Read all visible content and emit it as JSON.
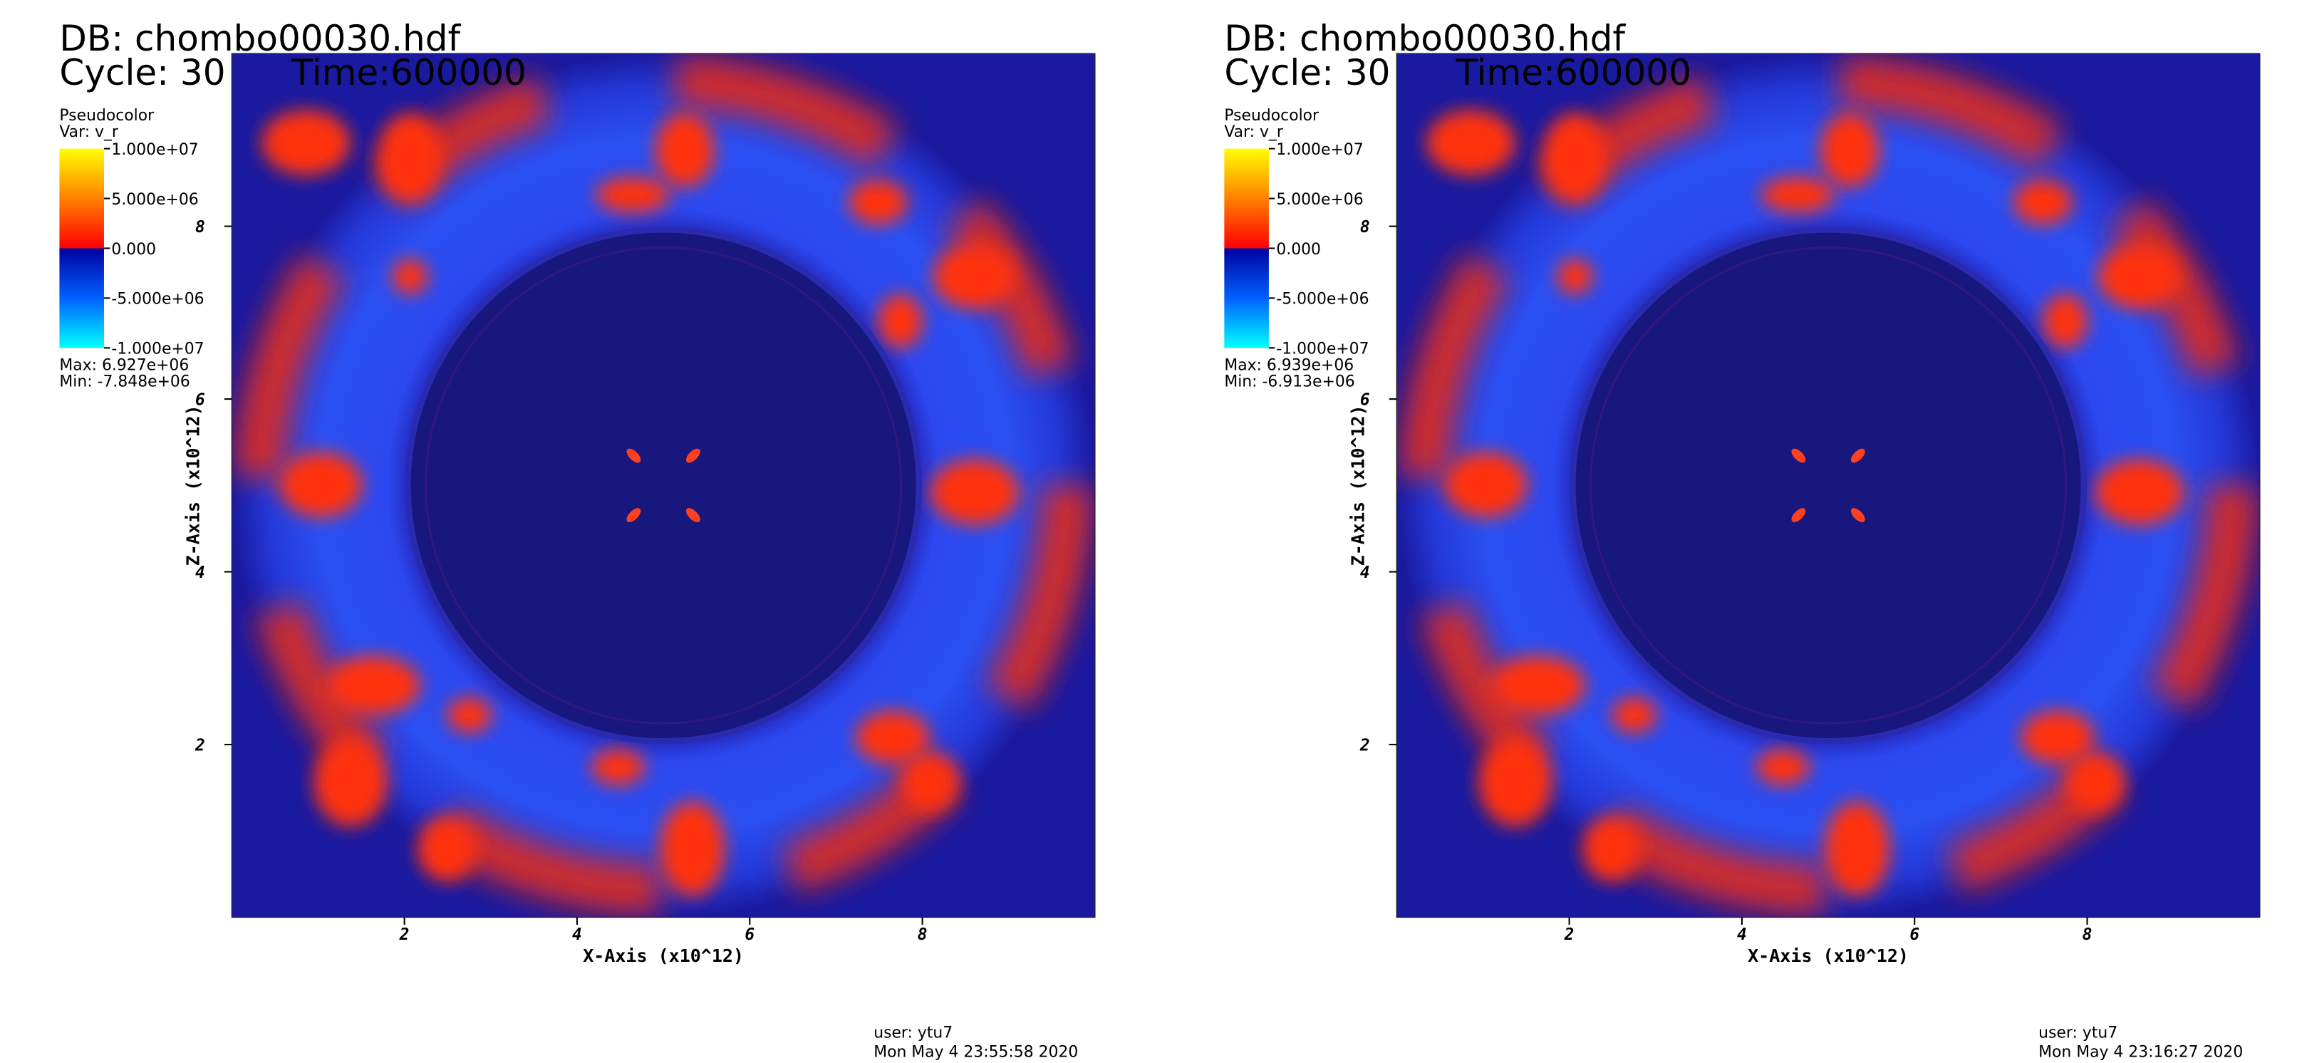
{
  "chart_data": [
    {
      "type": "pseudocolor",
      "db": "DB: chombo00030.hdf",
      "cycle": "Cycle: 30",
      "time": "Time:600000",
      "legend_title": "Pseudocolor",
      "variable": "Var: v_r",
      "colorbar_ticks": [
        {
          "value": 10000000,
          "label": "1.000e+07"
        },
        {
          "value": 5000000,
          "label": "5.000e+06"
        },
        {
          "value": 0,
          "label": "0.000"
        },
        {
          "value": -5000000,
          "label": "-5.000e+06"
        },
        {
          "value": -10000000,
          "label": "-1.000e+07"
        }
      ],
      "colorbar_lim": [
        -10000000,
        10000000
      ],
      "max": "Max:  6.927e+06",
      "min": "Min: -7.848e+06",
      "x_label": "X-Axis (x10^12)",
      "y_label": "Z-Axis (x10^12)",
      "xlim": [
        0,
        10
      ],
      "ylim": [
        0,
        10
      ],
      "xticks": [
        2,
        4,
        6,
        8
      ],
      "yticks": [
        2,
        4,
        6,
        8
      ],
      "user": "user: ytu7",
      "date": "Mon May  4 23:55:58 2020"
    },
    {
      "type": "pseudocolor",
      "db": "DB: chombo00030.hdf",
      "cycle": "Cycle: 30",
      "time": "Time:600000",
      "legend_title": "Pseudocolor",
      "variable": "Var: v_r",
      "colorbar_ticks": [
        {
          "value": 10000000,
          "label": "1.000e+07"
        },
        {
          "value": 5000000,
          "label": "5.000e+06"
        },
        {
          "value": 0,
          "label": "0.000"
        },
        {
          "value": -5000000,
          "label": "-5.000e+06"
        },
        {
          "value": -10000000,
          "label": "-1.000e+07"
        }
      ],
      "colorbar_lim": [
        -10000000,
        10000000
      ],
      "max": "Max:  6.939e+06",
      "min": "Min: -6.913e+06",
      "x_label": "X-Axis (x10^12)",
      "y_label": "Z-Axis (x10^12)",
      "xlim": [
        0,
        10
      ],
      "ylim": [
        0,
        10
      ],
      "xticks": [
        2,
        4,
        6,
        8
      ],
      "yticks": [
        2,
        4,
        6,
        8
      ],
      "user": "user: ytu7",
      "date": "Mon May  4 23:16:27 2020"
    }
  ]
}
